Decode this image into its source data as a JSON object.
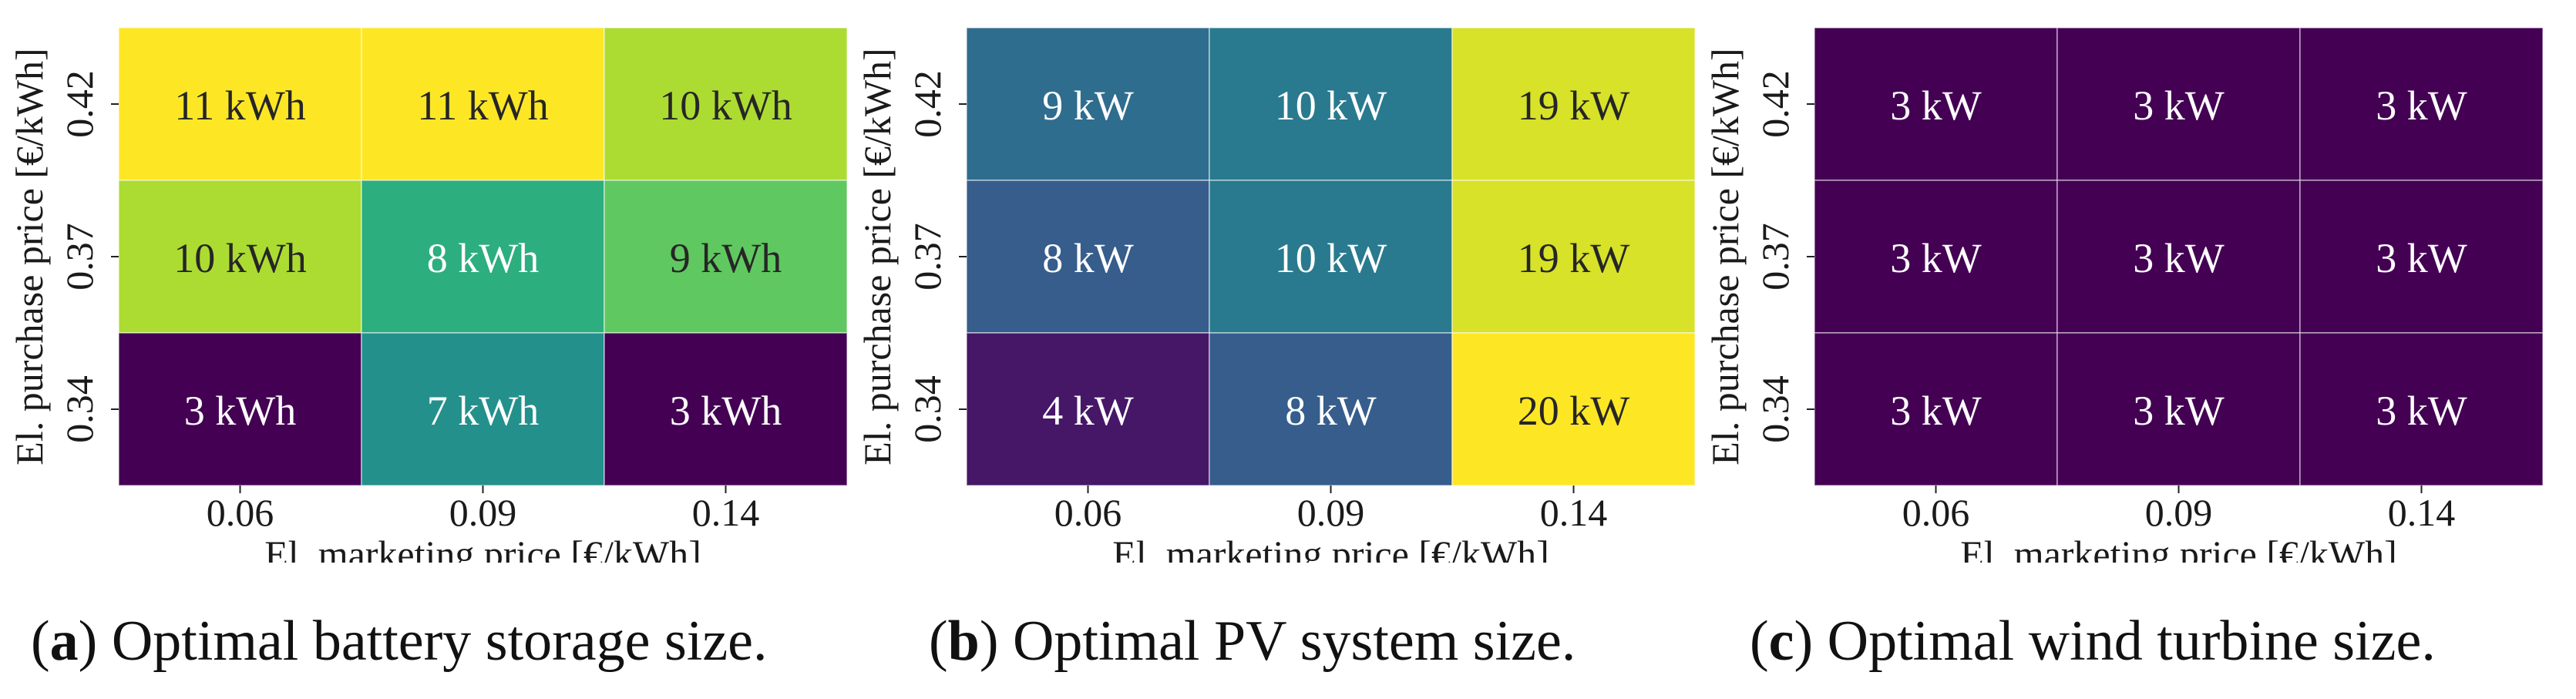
{
  "chart_data": [
    {
      "type": "heatmap",
      "title": "",
      "xlabel": "El. marketing price [€/kWh]",
      "ylabel": "El. purchase price [€/kWh]",
      "x_ticks": [
        "0.06",
        "0.09",
        "0.14"
      ],
      "y_ticks": [
        "0.42",
        "0.37",
        "0.34"
      ],
      "values": [
        [
          11,
          11,
          10
        ],
        [
          10,
          8,
          9
        ],
        [
          3,
          7,
          3
        ]
      ],
      "cell_labels": [
        [
          "11 kWh",
          "11 kWh",
          "10 kWh"
        ],
        [
          "10 kWh",
          "8 kWh",
          "9 kWh"
        ],
        [
          "3 kWh",
          "7 kWh",
          "3 kWh"
        ]
      ],
      "unit": "kWh",
      "colormap": "viridis",
      "vmin": 3,
      "vmax": 11,
      "caption_letter": "a",
      "caption_text": " Optimal battery storage size."
    },
    {
      "type": "heatmap",
      "title": "",
      "xlabel": "El. marketing price [€/kWh]",
      "ylabel": "El. purchase price [€/kWh]",
      "x_ticks": [
        "0.06",
        "0.09",
        "0.14"
      ],
      "y_ticks": [
        "0.42",
        "0.37",
        "0.34"
      ],
      "values": [
        [
          9,
          10,
          19
        ],
        [
          8,
          10,
          19
        ],
        [
          4,
          8,
          20
        ]
      ],
      "cell_labels": [
        [
          "9 kW",
          "10 kW",
          "19 kW"
        ],
        [
          "8 kW",
          "10 kW",
          "19 kW"
        ],
        [
          "4 kW",
          "8 kW",
          "20 kW"
        ]
      ],
      "unit": "kW",
      "colormap": "viridis",
      "vmin": 3,
      "vmax": 20,
      "caption_letter": "b",
      "caption_text": " Optimal PV system size."
    },
    {
      "type": "heatmap",
      "title": "",
      "xlabel": "El. marketing price [€/kWh]",
      "ylabel": "El. purchase price [€/kWh]",
      "x_ticks": [
        "0.06",
        "0.09",
        "0.14"
      ],
      "y_ticks": [
        "0.42",
        "0.37",
        "0.34"
      ],
      "values": [
        [
          3,
          3,
          3
        ],
        [
          3,
          3,
          3
        ],
        [
          3,
          3,
          3
        ]
      ],
      "cell_labels": [
        [
          "3 kW",
          "3 kW",
          "3 kW"
        ],
        [
          "3 kW",
          "3 kW",
          "3 kW"
        ],
        [
          "3 kW",
          "3 kW",
          "3 kW"
        ]
      ],
      "unit": "kW",
      "colormap": "viridis",
      "vmin": 3,
      "vmax": 20,
      "caption_letter": "c",
      "caption_text": " Optimal wind turbine size."
    }
  ]
}
